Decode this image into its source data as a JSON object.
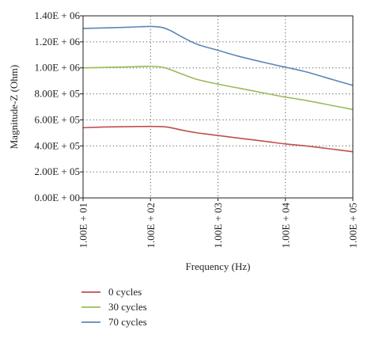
{
  "chart_data": {
    "type": "line",
    "xlabel": "Frequency (Hz)",
    "ylabel": "Magnitude-Z (Ohm)",
    "x_scale": "log",
    "x": [
      10,
      20,
      50,
      100,
      150,
      200,
      300,
      500,
      1000,
      2000,
      5000,
      10000,
      20000,
      50000,
      100000
    ],
    "xlim": [
      10,
      100000
    ],
    "ylim": [
      0,
      1400000
    ],
    "grid": "dotted",
    "legend_position": "bottom-left",
    "x_tick_values": [
      10,
      100,
      1000,
      10000,
      100000
    ],
    "x_tick_labels": [
      "1.00E + 01",
      "1.00E + 02",
      "1.00E + 03",
      "1.00E + 04",
      "1.00E + 05"
    ],
    "y_tick_values": [
      0,
      200000,
      400000,
      600000,
      800000,
      1000000,
      1200000,
      1400000
    ],
    "y_tick_labels": [
      "0.00E + 00",
      "2.00E + 05",
      "4.00E + 05",
      "6.00E + 05",
      "8.00E + 05",
      "1.00E + 06",
      "1.20E + 06",
      "1.40E + 06"
    ],
    "series": [
      {
        "name": "0 cycles",
        "color": "#c0504d",
        "values": [
          540000,
          545000,
          548000,
          550000,
          548000,
          540000,
          520000,
          500000,
          480000,
          460000,
          435000,
          415000,
          400000,
          375000,
          355000
        ]
      },
      {
        "name": "30 cycles",
        "color": "#9bbb59",
        "values": [
          1000000,
          1003000,
          1008000,
          1012000,
          1005000,
          985000,
          950000,
          910000,
          875000,
          845000,
          805000,
          775000,
          750000,
          710000,
          680000
        ]
      },
      {
        "name": "70 cycles",
        "color": "#5b86b8",
        "values": [
          1303000,
          1307000,
          1313000,
          1318000,
          1310000,
          1285000,
          1235000,
          1180000,
          1135000,
          1090000,
          1040000,
          1005000,
          970000,
          910000,
          865000
        ]
      }
    ]
  }
}
